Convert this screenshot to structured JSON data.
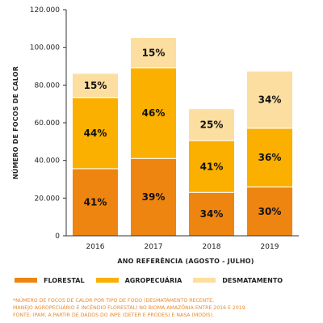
{
  "chart_data": {
    "type": "bar",
    "stacked": true,
    "categories": [
      "2016",
      "2017",
      "2018",
      "2019"
    ],
    "series": [
      {
        "name": "FLORESTAL",
        "color": "#ee8510",
        "values": [
          35600,
          41000,
          23000,
          25900
        ],
        "labels": [
          "41%",
          "39%",
          "34%",
          "30%"
        ]
      },
      {
        "name": "AGROPECUÁRIA",
        "color": "#fbb000",
        "values": [
          37800,
          48200,
          27500,
          31200
        ],
        "labels": [
          "44%",
          "46%",
          "41%",
          "36%"
        ]
      },
      {
        "name": "DESMATAMENTO",
        "color": "#fcdea0",
        "values": [
          12600,
          15800,
          16700,
          30100
        ],
        "labels": [
          "15%",
          "15%",
          "25%",
          "34%"
        ]
      }
    ],
    "ylim": [
      0,
      120000
    ],
    "yticks": [
      "0",
      "20.000",
      "40.000",
      "60.000",
      "80.000",
      "100.000",
      "120.000"
    ],
    "ylabel": "NÚMERO DE FOCOS DE CALOR",
    "xlabel": "ANO REFERÊNCIA (AGOSTO - JULHO)",
    "legend_position": "bottom"
  },
  "notes": [
    "*NÚMERO DE FOCOS DE CALOR POR TIPO DE FOGO (DESMATAMENTO RECENTE,",
    "MANEJO AGROPECUÁRIO E INCÊNDIO FLORESTAL) NO BIOMA AMAZÔNIA ENTRE 2016 E 2019.",
    "FONTE: IPAM, A PARTIR DE DADOS DO INPE (DETER E PRODES) E NASA (MODIS)."
  ]
}
